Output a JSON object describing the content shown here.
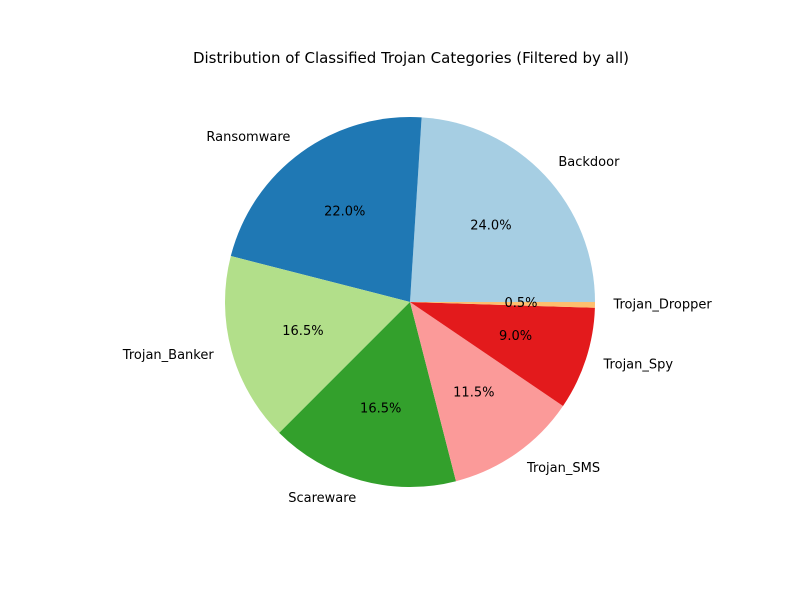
{
  "chart_data": {
    "type": "pie",
    "title": "Distribution of Classified Trojan Categories (Filtered by all)",
    "start_angle_deg": 0,
    "direction": "counterclockwise",
    "slices": [
      {
        "label": "Backdoor",
        "value": 24.0,
        "pct_text": "24.0%",
        "color": "#a6cee3"
      },
      {
        "label": "Ransomware",
        "value": 22.0,
        "pct_text": "22.0%",
        "color": "#1f78b4"
      },
      {
        "label": "Trojan_Banker",
        "value": 16.5,
        "pct_text": "16.5%",
        "color": "#b2df8a"
      },
      {
        "label": "Scareware",
        "value": 16.5,
        "pct_text": "16.5%",
        "color": "#33a02c"
      },
      {
        "label": "Trojan_SMS",
        "value": 11.5,
        "pct_text": "11.5%",
        "color": "#fb9a99"
      },
      {
        "label": "Trojan_Spy",
        "value": 9.0,
        "pct_text": "9.0%",
        "color": "#e31a1c"
      },
      {
        "label": "Trojan_Dropper",
        "value": 0.5,
        "pct_text": "0.5%",
        "color": "#fdbf6f"
      }
    ]
  }
}
